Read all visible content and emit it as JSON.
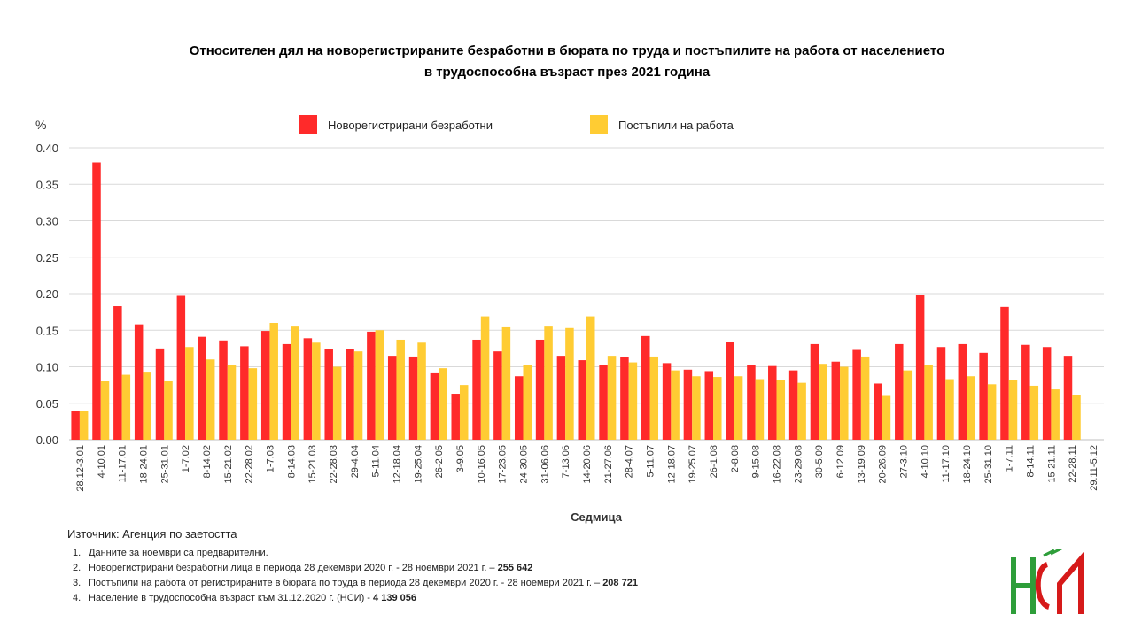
{
  "title_line1": "Относителен дял на новорегистрираните безработни в бюрата по труда и постъпилите на работа от населението",
  "title_line2": "в трудоспособна възраст през 2021 година",
  "source": "Източник: Агенция по заетостта",
  "notes": [
    {
      "num": "1.",
      "text": "Данните за ноември  са предварителни.",
      "bold": ""
    },
    {
      "num": "2.",
      "text": "Новорегистрирани безработни лица в периода  28 декември  2020 г. - 28 ноември  2021 г. – ",
      "bold": "255 642"
    },
    {
      "num": "3.",
      "text": "Постъпили на работа от регистрираните в бюрата по труда в периода  28 декември  2020 г. - 28 ноември  2021 г. – ",
      "bold": "208 721"
    },
    {
      "num": "4.",
      "text": "Население в трудоспособна възраст към 31.12.2020 г. (НСИ)   - ",
      "bold": "4 139 056"
    }
  ],
  "colors": {
    "series1": "#ff2a2a",
    "series2": "#ffcc33",
    "grid": "#d9d9d9"
  },
  "chart_data": {
    "type": "bar",
    "title": "Относителен дял на новорегистрираните безработни в бюрата по труда и постъпилите на работа от населението в трудоспособна възраст през 2021 година",
    "xlabel": "Седмица",
    "ylabel": "%",
    "ylim": [
      0,
      0.4
    ],
    "yticks": [
      "0.00",
      "0.05",
      "0.10",
      "0.15",
      "0.20",
      "0.25",
      "0.30",
      "0.35",
      "0.40"
    ],
    "grid": true,
    "legend_position": "top",
    "categories": [
      "28.12-3.01",
      "4-10.01",
      "11-17.01",
      "18-24.01",
      "25-31.01",
      "1-7.02",
      "8-14.02",
      "15-21.02",
      "22-28.02",
      "1-7.03",
      "8-14.03",
      "15-21.03",
      "22-28.03",
      "29-4.04",
      "5-11.04",
      "12-18.04",
      "19-25.04",
      "26-2.05",
      "3-9.05",
      "10-16.05",
      "17-23.05",
      "24-30.05",
      "31-06.06",
      "7-13.06",
      "14-20.06",
      "21-27.06",
      "28-4.07",
      "5-11.07",
      "12-18.07",
      "19-25.07",
      "26-1.08",
      "2-8.08",
      "9-15.08",
      "16-22.08",
      "23-29.08",
      "30-5.09",
      "6-12.09",
      "13-19.09",
      "20-26.09",
      "27-3.10",
      "4-10.10",
      "11-17.10",
      "18-24.10",
      "25-31.10",
      "1-7.11",
      "8-14.11",
      "15-21.11",
      "22-28.11",
      "29.11-5.12"
    ],
    "series": [
      {
        "name": "Новорегистрирани безработни",
        "color": "#ff2a2a",
        "values": [
          0.039,
          0.38,
          0.183,
          0.158,
          0.125,
          0.197,
          0.141,
          0.136,
          0.128,
          0.149,
          0.131,
          0.139,
          0.124,
          0.124,
          0.148,
          0.115,
          0.114,
          0.091,
          0.063,
          0.137,
          0.121,
          0.087,
          0.137,
          0.115,
          0.109,
          0.103,
          0.113,
          0.142,
          0.105,
          0.096,
          0.094,
          0.134,
          0.102,
          0.101,
          0.095,
          0.131,
          0.107,
          0.123,
          0.077,
          0.131,
          0.198,
          0.127,
          0.131,
          0.119,
          0.182,
          0.13,
          0.127,
          0.115,
          null
        ]
      },
      {
        "name": "Постъпили на работа",
        "color": "#ffcc33",
        "values": [
          0.039,
          0.08,
          0.089,
          0.092,
          0.08,
          0.127,
          0.11,
          0.103,
          0.098,
          0.16,
          0.155,
          0.133,
          0.1,
          0.121,
          0.15,
          0.137,
          0.133,
          0.098,
          0.075,
          0.169,
          0.154,
          0.102,
          0.155,
          0.153,
          0.169,
          0.115,
          0.106,
          0.114,
          0.095,
          0.087,
          0.086,
          0.087,
          0.083,
          0.082,
          0.078,
          0.104,
          0.1,
          0.114,
          0.06,
          0.095,
          0.102,
          0.083,
          0.087,
          0.076,
          0.082,
          0.074,
          0.069,
          0.061,
          null
        ]
      }
    ]
  }
}
